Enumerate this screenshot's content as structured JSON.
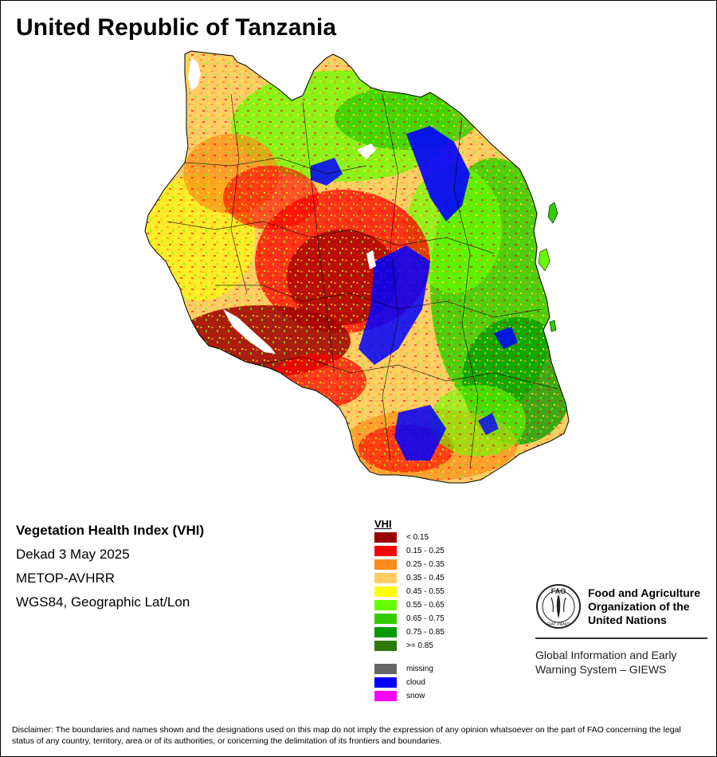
{
  "page": {
    "title": "United Republic of Tanzania"
  },
  "info": {
    "index_name": "Vegetation Health Index (VHI)",
    "period": "Dekad 3 May 2025",
    "sensor": "METOP-AVHRR",
    "projection": "WGS84, Geographic Lat/Lon"
  },
  "legend": {
    "title": "VHI",
    "classes": [
      {
        "label": "< 0.15",
        "color": "#990000"
      },
      {
        "label": "0.15 - 0.25",
        "color": "#ff0000"
      },
      {
        "label": "0.25 - 0.35",
        "color": "#ff8c1a"
      },
      {
        "label": "0.35 - 0.45",
        "color": "#ffcc66"
      },
      {
        "label": "0.45 - 0.55",
        "color": "#ffff00"
      },
      {
        "label": "0.55 - 0.65",
        "color": "#66ff00"
      },
      {
        "label": "0.65 - 0.75",
        "color": "#33cc00"
      },
      {
        "label": "0.75 - 0.85",
        "color": "#009900"
      },
      {
        "label": ">= 0.85",
        "color": "#2d7a00"
      }
    ],
    "special": [
      {
        "label": "missing",
        "color": "#666666"
      },
      {
        "label": "cloud",
        "color": "#0000ff"
      },
      {
        "label": "snow",
        "color": "#ff00ff"
      }
    ]
  },
  "fao": {
    "logo_text": "FAO",
    "logo_motto": "FIAT PANIS",
    "name_line1": "Food and Agriculture",
    "name_line2": "Organization of the",
    "name_line3": "United Nations",
    "system_line1": "Global Information and Early",
    "system_line2": "Warning System – GIEWS"
  },
  "disclaimer": "Disclaimer: The boundaries and names shown and the designations used on this map do not imply the expression of any opinion whatsoever on the part of FAO concerning the legal status of any country, territory, area or of its authorities, or concerning the delimitation of its frontiers and boundaries."
}
